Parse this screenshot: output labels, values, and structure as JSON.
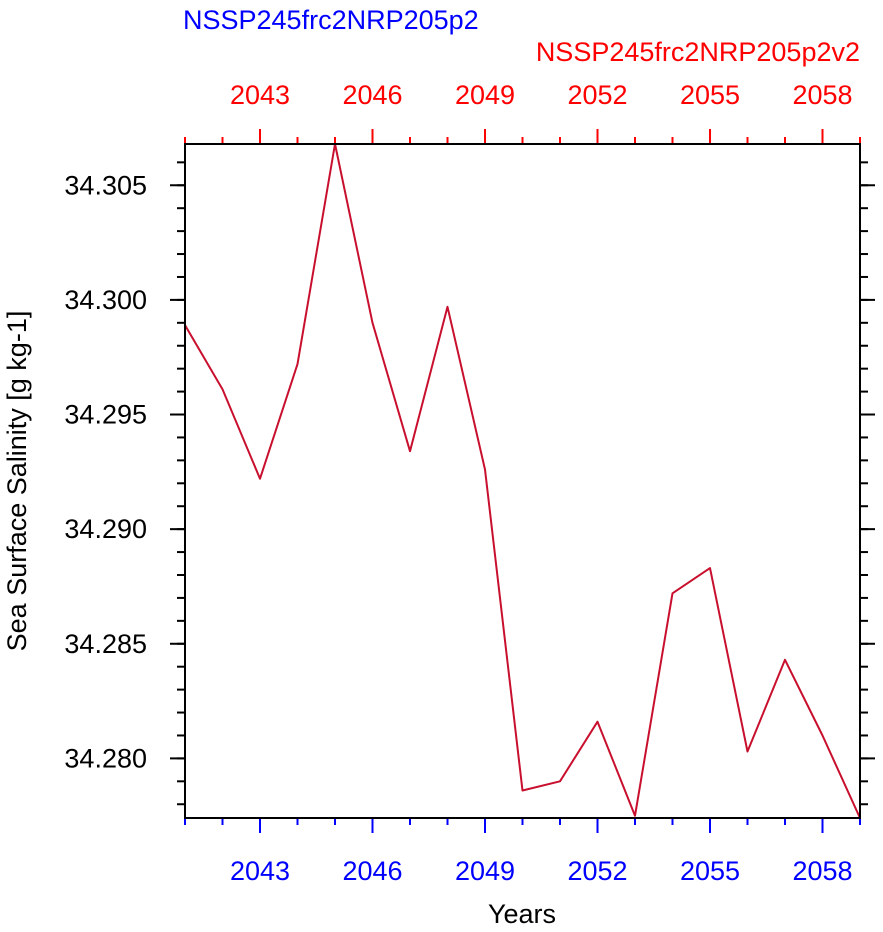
{
  "chart_data": {
    "type": "line",
    "title_left": "NSSP245frc2NRP205p2",
    "title_right": "NSSP245frc2NRP205p2v2",
    "xlabel": "Years",
    "ylabel": "Sea Surface Salinity [g kg-1]",
    "xlim": [
      2041,
      2059
    ],
    "ylim": [
      34.2774,
      34.3068
    ],
    "x_major_ticks": [
      2043,
      2046,
      2049,
      2052,
      2055,
      2058
    ],
    "x_tick_labels": [
      "2043",
      "2046",
      "2049",
      "2052",
      "2055",
      "2058"
    ],
    "y_major_ticks": [
      34.28,
      34.285,
      34.29,
      34.295,
      34.3,
      34.305
    ],
    "y_tick_labels": [
      "34.280",
      "34.285",
      "34.290",
      "34.295",
      "34.300",
      "34.305"
    ],
    "colors": {
      "series": "#c8102e",
      "bottom_axis_labels": "#0000ff",
      "top_axis_labels": "#ff0000",
      "left_title": "#0000ff",
      "right_title": "#ff0000"
    },
    "series": [
      {
        "x": [
          2041,
          2042,
          2043,
          2044,
          2045,
          2046,
          2047,
          2048,
          2049,
          2050,
          2051,
          2052,
          2053,
          2054,
          2055,
          2056,
          2057,
          2058,
          2059
        ],
        "values": [
          34.2989,
          34.2961,
          34.2922,
          34.2972,
          34.3068,
          34.299,
          34.2934,
          34.2997,
          34.2926,
          34.2786,
          34.279,
          34.2816,
          34.2775,
          34.2872,
          34.2883,
          34.2803,
          34.2843,
          34.281,
          34.2774
        ]
      }
    ]
  }
}
